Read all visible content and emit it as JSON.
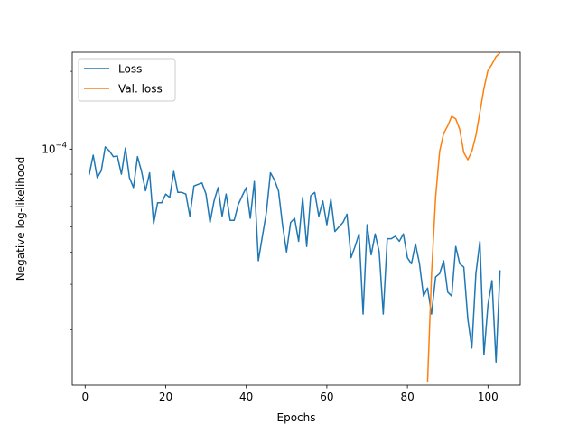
{
  "chart_data": {
    "type": "line",
    "xlabel": "Epochs",
    "ylabel": "Negative log-likelihood",
    "yscale": "log",
    "xlim": [
      -3.2,
      108
    ],
    "ylim": [
      1.22e-05,
      0.000237
    ],
    "x_ticks": [
      0,
      20,
      40,
      60,
      80,
      100
    ],
    "y_ticks": [
      {
        "value": 0.0001,
        "label": "10",
        "exponent": "−4"
      }
    ],
    "legend": {
      "position": "top-left"
    },
    "grid": false,
    "series": [
      {
        "name": "Loss",
        "color": "#1f77b4",
        "x": [
          1,
          2,
          3,
          4,
          5,
          6,
          7,
          8,
          9,
          10,
          11,
          12,
          13,
          14,
          15,
          16,
          17,
          18,
          19,
          20,
          21,
          22,
          23,
          24,
          25,
          26,
          27,
          28,
          29,
          30,
          31,
          32,
          33,
          34,
          35,
          36,
          37,
          38,
          39,
          40,
          41,
          42,
          43,
          44,
          45,
          46,
          47,
          48,
          49,
          50,
          51,
          52,
          53,
          54,
          55,
          56,
          57,
          58,
          59,
          60,
          61,
          62,
          63,
          64,
          65,
          66,
          67,
          68,
          69,
          70,
          71,
          72,
          73,
          74,
          75,
          76,
          77,
          78,
          79,
          80,
          81,
          82,
          83,
          84,
          85,
          86,
          87,
          88,
          89,
          90,
          91,
          92,
          93,
          94,
          95,
          96,
          97,
          98,
          99,
          100,
          101,
          102,
          103
        ],
        "values": [
          7.95e-05,
          9.48e-05,
          7.75e-05,
          8.25e-05,
          0.000102,
          9.85e-05,
          9.35e-05,
          9.4e-05,
          8e-05,
          0.000101,
          7.75e-05,
          7.1e-05,
          9.35e-05,
          8.2e-05,
          6.9e-05,
          8.1e-05,
          5.15e-05,
          6.2e-05,
          6.2e-05,
          6.7e-05,
          6.5e-05,
          8.2e-05,
          6.8e-05,
          6.8e-05,
          6.7e-05,
          5.5e-05,
          7.2e-05,
          7.3e-05,
          7.4e-05,
          6.7e-05,
          5.2e-05,
          6.3e-05,
          7.1e-05,
          5.5e-05,
          6.7e-05,
          5.3e-05,
          5.3e-05,
          6.1e-05,
          6.6e-05,
          7.1e-05,
          5.4e-05,
          7.5e-05,
          3.7e-05,
          4.6e-05,
          5.7e-05,
          8.1e-05,
          7.6e-05,
          6.9e-05,
          5.1e-05,
          4e-05,
          5.2e-05,
          5.4e-05,
          4.4e-05,
          6.5e-05,
          4.2e-05,
          6.6e-05,
          6.8e-05,
          5.5e-05,
          6.3e-05,
          5.1e-05,
          6.4e-05,
          4.8e-05,
          5e-05,
          5.2e-05,
          5.6e-05,
          3.8e-05,
          4.2e-05,
          4.7e-05,
          2.3e-05,
          5.1e-05,
          3.9e-05,
          4.7e-05,
          4e-05,
          2.3e-05,
          4.5e-05,
          4.5e-05,
          4.6e-05,
          4.4e-05,
          4.7e-05,
          3.8e-05,
          3.6e-05,
          4.3e-05,
          3.6e-05,
          2.7e-05,
          2.9e-05,
          2.3e-05,
          3.2e-05,
          3.3e-05,
          3.7e-05,
          2.8e-05,
          2.7e-05,
          4.2e-05,
          3.6e-05,
          3.5e-05,
          2.2e-05,
          1.7e-05,
          3.3e-05,
          4.4e-05,
          1.6e-05,
          2.5e-05,
          3.1e-05,
          1.5e-05,
          3.4e-05
        ]
      },
      {
        "name": "Val. loss",
        "color": "#ff7f0e",
        "x": [
          85,
          86,
          87,
          88,
          89,
          90,
          91,
          92,
          93,
          94,
          95,
          96,
          97,
          98,
          99,
          100,
          101,
          102,
          103
        ],
        "values": [
          1.25e-05,
          3.3e-05,
          6.5e-05,
          9.8e-05,
          0.000115,
          0.000123,
          0.000134,
          0.000131,
          0.000119,
          9.7e-05,
          9.1e-05,
          9.8e-05,
          0.000113,
          0.000139,
          0.000172,
          0.000202,
          0.000213,
          0.000228,
          0.000236
        ]
      }
    ]
  }
}
